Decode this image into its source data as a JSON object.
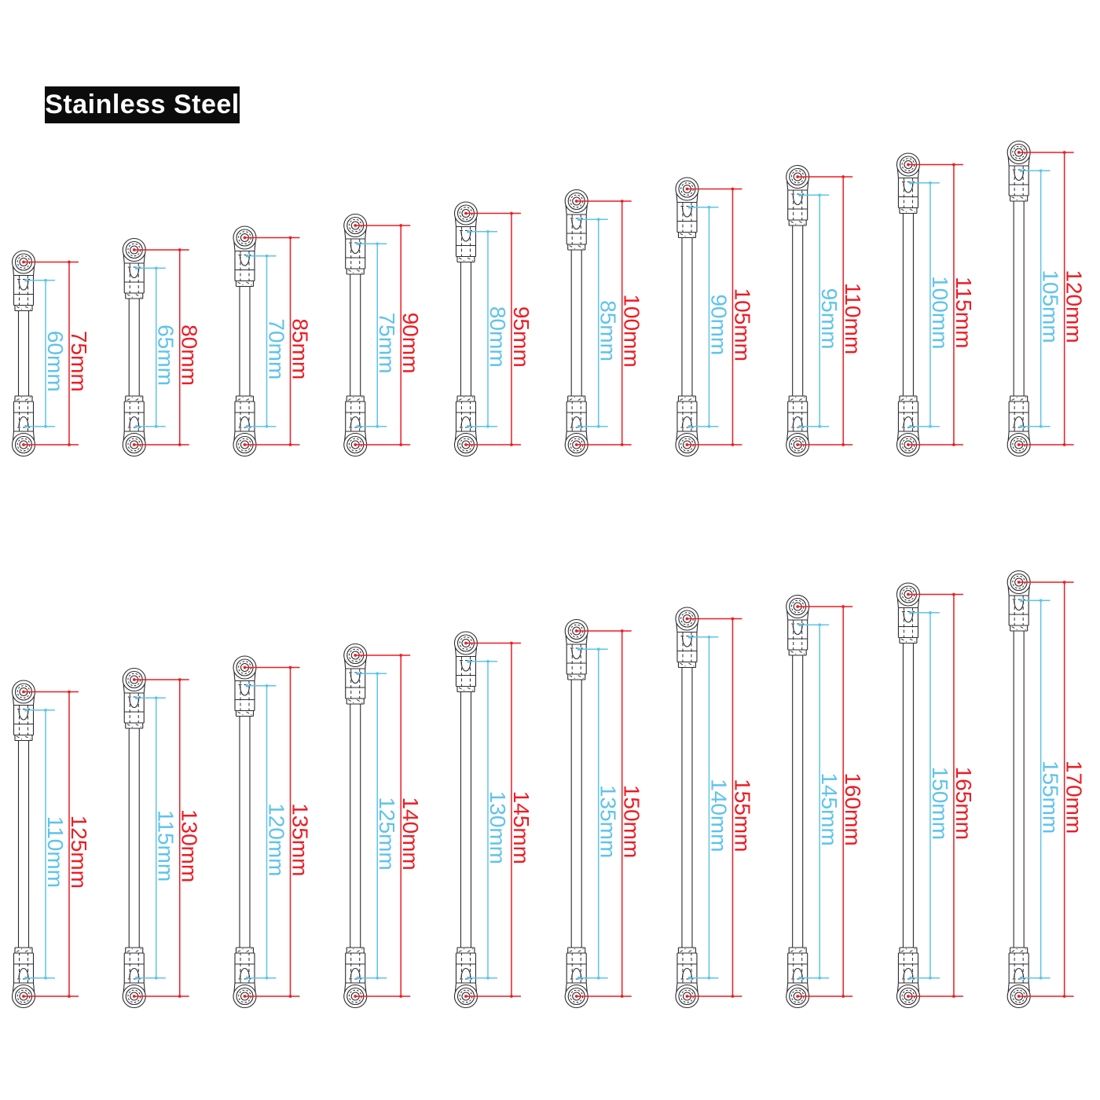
{
  "label": {
    "text": "Stainless Steel"
  },
  "units": "mm",
  "colors": {
    "dimension_red": "#ed1c24",
    "dimension_blue": "#5fc3eb",
    "drawing_line": "#2b2b30",
    "label_bg": "#0c0c0c",
    "label_text": "#ffffff",
    "background": "#ffffff"
  },
  "rows": [
    {
      "name": "row-1",
      "rods": [
        {
          "overall_mm": 75,
          "inner_mm": 60,
          "overall_label": "75mm",
          "inner_label": "60mm"
        },
        {
          "overall_mm": 80,
          "inner_mm": 65,
          "overall_label": "80mm",
          "inner_label": "65mm"
        },
        {
          "overall_mm": 85,
          "inner_mm": 70,
          "overall_label": "85mm",
          "inner_label": "70mm"
        },
        {
          "overall_mm": 90,
          "inner_mm": 75,
          "overall_label": "90mm",
          "inner_label": "75mm"
        },
        {
          "overall_mm": 95,
          "inner_mm": 80,
          "overall_label": "95mm",
          "inner_label": "80mm"
        },
        {
          "overall_mm": 100,
          "inner_mm": 85,
          "overall_label": "100mm",
          "inner_label": "85mm"
        },
        {
          "overall_mm": 105,
          "inner_mm": 90,
          "overall_label": "105mm",
          "inner_label": "90mm"
        },
        {
          "overall_mm": 110,
          "inner_mm": 95,
          "overall_label": "110mm",
          "inner_label": "95mm"
        },
        {
          "overall_mm": 115,
          "inner_mm": 100,
          "overall_label": "115mm",
          "inner_label": "100mm"
        },
        {
          "overall_mm": 120,
          "inner_mm": 105,
          "overall_label": "120mm",
          "inner_label": "105mm"
        }
      ]
    },
    {
      "name": "row-2",
      "rods": [
        {
          "overall_mm": 125,
          "inner_mm": 110,
          "overall_label": "125mm",
          "inner_label": "110mm"
        },
        {
          "overall_mm": 130,
          "inner_mm": 115,
          "overall_label": "130mm",
          "inner_label": "115mm"
        },
        {
          "overall_mm": 135,
          "inner_mm": 120,
          "overall_label": "135mm",
          "inner_label": "120mm"
        },
        {
          "overall_mm": 140,
          "inner_mm": 125,
          "overall_label": "140mm",
          "inner_label": "125mm"
        },
        {
          "overall_mm": 145,
          "inner_mm": 130,
          "overall_label": "145mm",
          "inner_label": "130mm"
        },
        {
          "overall_mm": 150,
          "inner_mm": 135,
          "overall_label": "150mm",
          "inner_label": "135mm"
        },
        {
          "overall_mm": 155,
          "inner_mm": 140,
          "overall_label": "155mm",
          "inner_label": "140mm"
        },
        {
          "overall_mm": 160,
          "inner_mm": 145,
          "overall_label": "160mm",
          "inner_label": "145mm"
        },
        {
          "overall_mm": 165,
          "inner_mm": 150,
          "overall_label": "165mm",
          "inner_label": "150mm"
        },
        {
          "overall_mm": 170,
          "inner_mm": 155,
          "overall_label": "170mm",
          "inner_label": "155mm"
        }
      ]
    }
  ]
}
